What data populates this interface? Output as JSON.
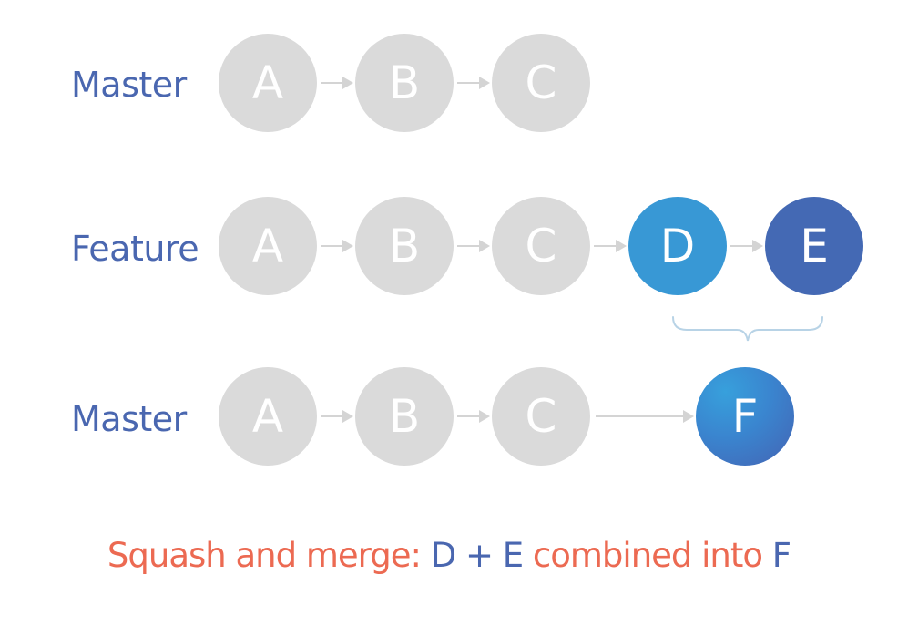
{
  "rows": [
    {
      "label": "Master",
      "nodes": [
        "A",
        "B",
        "C"
      ]
    },
    {
      "label": "Feature",
      "nodes": [
        "A",
        "B",
        "C",
        "D",
        "E"
      ]
    },
    {
      "label": "Master",
      "nodes": [
        "A",
        "B",
        "C",
        "F"
      ]
    }
  ],
  "caption": {
    "prefix": "Squash and merge: ",
    "d": "D",
    "plus": " + ",
    "e": "E",
    "middle": " combined into ",
    "f": "F"
  },
  "colors": {
    "label": "#4a67b0",
    "node_gray": "#dadada",
    "node_d": "#3898d5",
    "node_e": "#4469b4",
    "caption_red": "#ec6a52",
    "caption_blue": "#4a67b0",
    "arrow": "#d4d4d4"
  }
}
